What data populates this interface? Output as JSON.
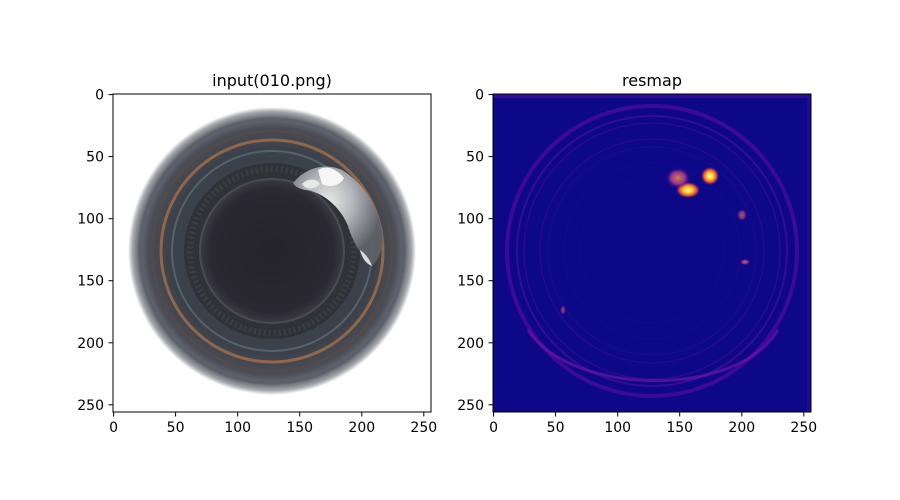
{
  "figure": {
    "panels": [
      {
        "title": "input(010.png)",
        "content": "photo of a circular bottle opening with a bright broken-lip defect near the upper right",
        "x_ticks": [
          "0",
          "50",
          "100",
          "150",
          "200",
          "250"
        ],
        "y_ticks": [
          "0",
          "50",
          "100",
          "150",
          "200",
          "250"
        ]
      },
      {
        "title": "resmap",
        "content": "residual heatmap on dark blue background with faint purple rings and a bright yellow hotspot near the upper right",
        "x_ticks": [
          "0",
          "50",
          "100",
          "150",
          "200",
          "250"
        ],
        "y_ticks": [
          "0",
          "50",
          "100",
          "150",
          "200",
          "250"
        ]
      }
    ]
  }
}
